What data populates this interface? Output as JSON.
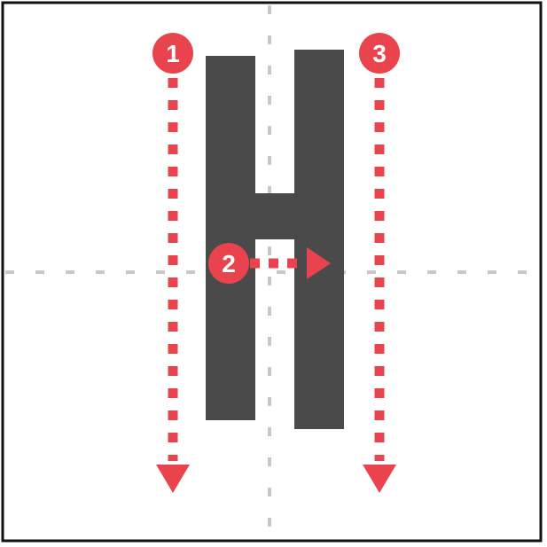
{
  "diagram": {
    "letter": "H",
    "colors": {
      "frame": "#111111",
      "guide": "#c8c8c8",
      "letter": "#4a4a4a",
      "stroke_marker": "#e9444d",
      "badge_text": "#ffffff"
    },
    "strokes": [
      {
        "order": "1",
        "direction": "down"
      },
      {
        "order": "2",
        "direction": "right"
      },
      {
        "order": "3",
        "direction": "down"
      }
    ]
  }
}
